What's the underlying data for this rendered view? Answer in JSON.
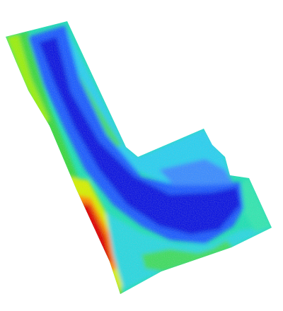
{
  "map": {
    "type": "elevation-raster",
    "colormap": "jet",
    "background": "#ffffff",
    "palette": {
      "lowest": "#0a14e6",
      "low": "#1e55ff",
      "mid_low": "#00bfff",
      "mid": "#19e6c8",
      "mid_high": "#33d94a",
      "high": "#b3f000",
      "higher": "#ffe600",
      "very_high": "#ff7a00",
      "highest": "#e60000"
    }
  }
}
